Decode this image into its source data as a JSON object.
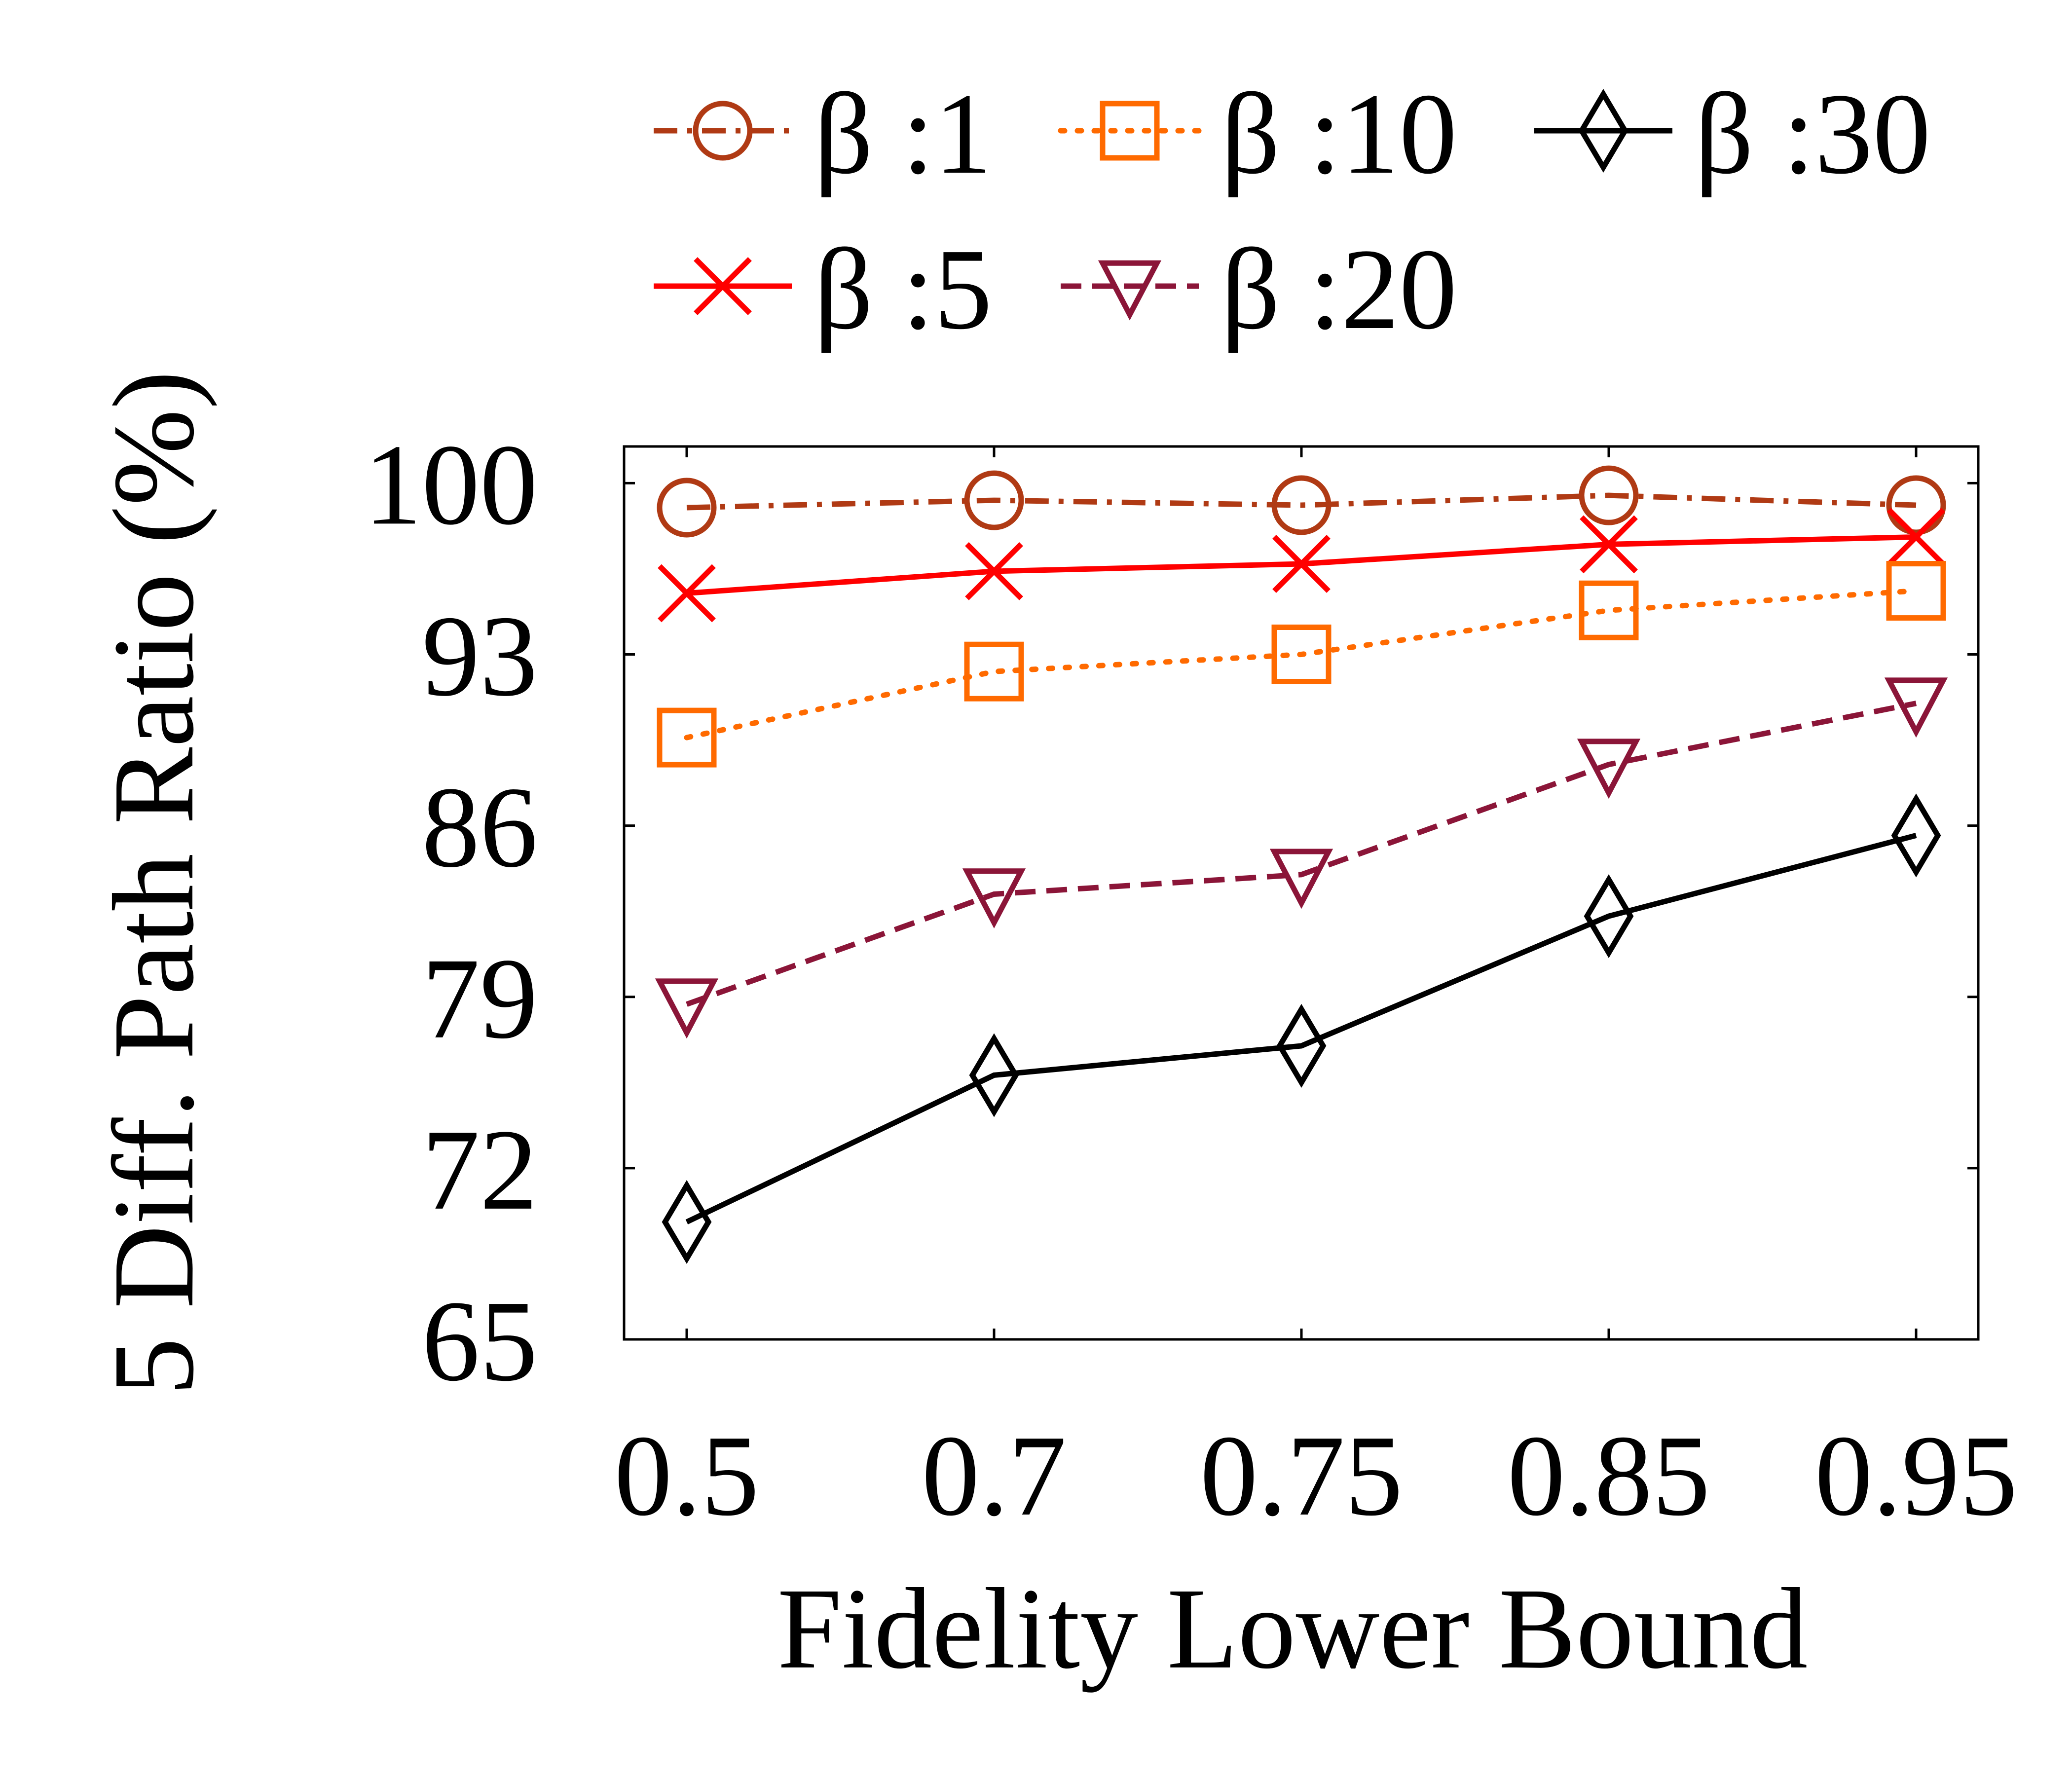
{
  "chart_data": {
    "type": "line",
    "xlabel": "Fidelity Lower Bound",
    "ylabel": "5 Diff. Path Ratio  (%)",
    "categories": [
      "0.5",
      "0.7",
      "0.75",
      "0.85",
      "0.95"
    ],
    "ylim": [
      65,
      101.5
    ],
    "yticks": [
      100,
      93,
      86,
      79,
      72,
      65
    ],
    "grid": false,
    "legend_placement": "top",
    "series": [
      {
        "name": "β :1",
        "color": "#b03a14",
        "dash": "dashdot",
        "marker": "circle",
        "values": [
          99.0,
          99.3,
          99.1,
          99.5,
          99.1
        ]
      },
      {
        "name": "β :5",
        "color": "#ff0000",
        "dash": "solid",
        "marker": "x",
        "values": [
          95.5,
          96.4,
          96.7,
          97.5,
          97.8
        ]
      },
      {
        "name": "β :10",
        "color": "#ff6a00",
        "dash": "dotted",
        "marker": "square",
        "values": [
          89.6,
          92.3,
          93.0,
          94.8,
          95.6
        ]
      },
      {
        "name": "β :20",
        "color": "#8b1538",
        "dash": "dashed",
        "marker": "triangle-down",
        "values": [
          78.7,
          83.2,
          84.0,
          88.5,
          91.0
        ]
      },
      {
        "name": "β :30",
        "color": "#000000",
        "dash": "solid",
        "marker": "diamond",
        "values": [
          69.8,
          75.8,
          77.0,
          82.3,
          85.6
        ]
      }
    ],
    "legend_order": [
      0,
      2,
      4,
      1,
      3
    ]
  }
}
